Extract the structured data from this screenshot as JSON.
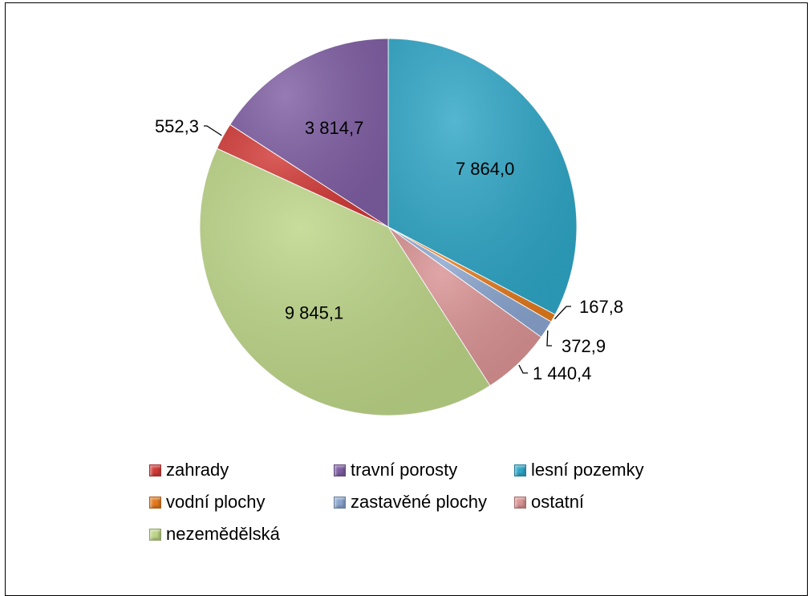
{
  "chart_data": {
    "type": "pie",
    "series": [
      {
        "values": [
          {
            "category": "lesní pozemky",
            "value": 7864.0,
            "label": "7 864,0",
            "color": "#2fa6c6"
          },
          {
            "category": "vodní plochy",
            "value": 167.8,
            "label": "167,8",
            "color": "#e37a1d"
          },
          {
            "category": "zastavěné plochy",
            "value": 372.9,
            "label": "372,9",
            "color": "#8aa5cf"
          },
          {
            "category": "ostatní",
            "value": 1440.4,
            "label": "1 440,4",
            "color": "#d99293"
          },
          {
            "category": "nezemědělská",
            "value": 9845.1,
            "label": "9 845,1",
            "color": "#bcd587"
          },
          {
            "category": "zahrady",
            "value": 552.3,
            "label": "552,3",
            "color": "#d23a37"
          },
          {
            "category": "travní porosty",
            "value": 3814.7,
            "label": "3 814,7",
            "color": "#7f5ea3"
          }
        ]
      }
    ],
    "legend": {
      "position": "bottom",
      "items": [
        "zahrady",
        "travní porosty",
        "lesní pozemky",
        "vodní plochy",
        "zastavěné plochy",
        "ostatní",
        "nezemědělská"
      ]
    },
    "start_angle_deg": 0,
    "direction": "clockwise"
  }
}
